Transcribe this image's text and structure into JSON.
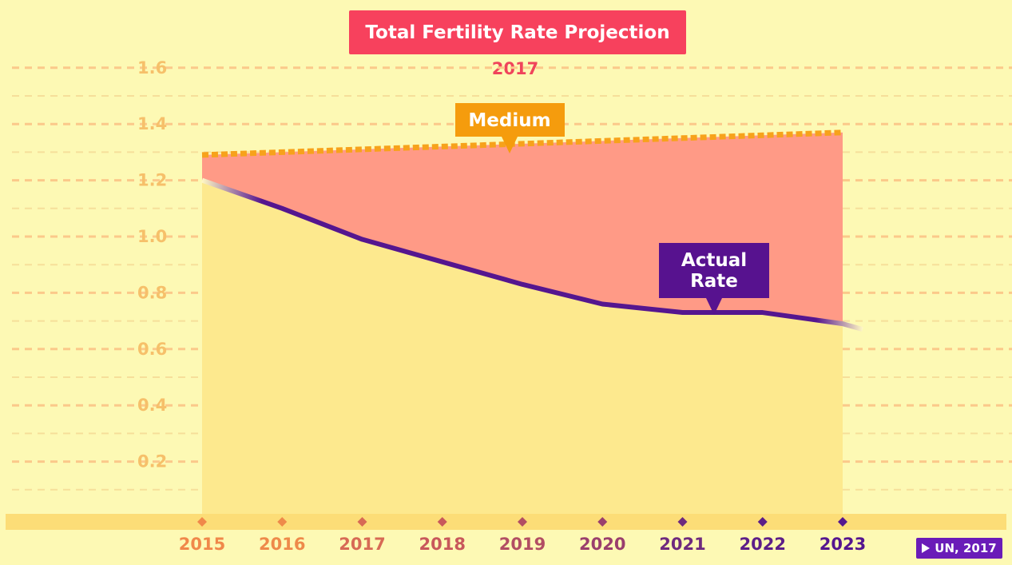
{
  "chart_data": {
    "type": "area",
    "title": "Total Fertility Rate Projection",
    "subtitle": "2017",
    "x": [
      "2015",
      "2016",
      "2017",
      "2018",
      "2019",
      "2020",
      "2021",
      "2022",
      "2023"
    ],
    "ylim": [
      0,
      1.6
    ],
    "yticks": [
      "0.2",
      "0.4",
      "0.6",
      "0.8",
      "1.0",
      "1.2",
      "1.4",
      "1.6"
    ],
    "series": [
      {
        "name": "Medium",
        "label": "Medium",
        "color": "#f7a21b",
        "style": "dotted",
        "values": [
          1.29,
          1.3,
          1.31,
          1.32,
          1.33,
          1.34,
          1.35,
          1.36,
          1.37
        ]
      },
      {
        "name": "Actual Rate",
        "label_lines": [
          "Actual",
          "Rate"
        ],
        "color": "#55168f",
        "style": "solid",
        "values": [
          1.2,
          1.1,
          0.99,
          0.91,
          0.83,
          0.76,
          0.73,
          0.73,
          0.69
        ]
      }
    ],
    "gap_fill_color": "#ff9a86",
    "under_fill_color": "#fde98e",
    "grid": true,
    "xtick_colors": [
      "#f0884a",
      "#ee8a4a",
      "#d76a55",
      "#c8585b",
      "#b24e63",
      "#9a3f6d",
      "#6e2a7e",
      "#5c1e88",
      "#55168f"
    ]
  },
  "source": {
    "label": "UN, 2017",
    "icon": "play-icon",
    "color": "#6a1cb8"
  }
}
